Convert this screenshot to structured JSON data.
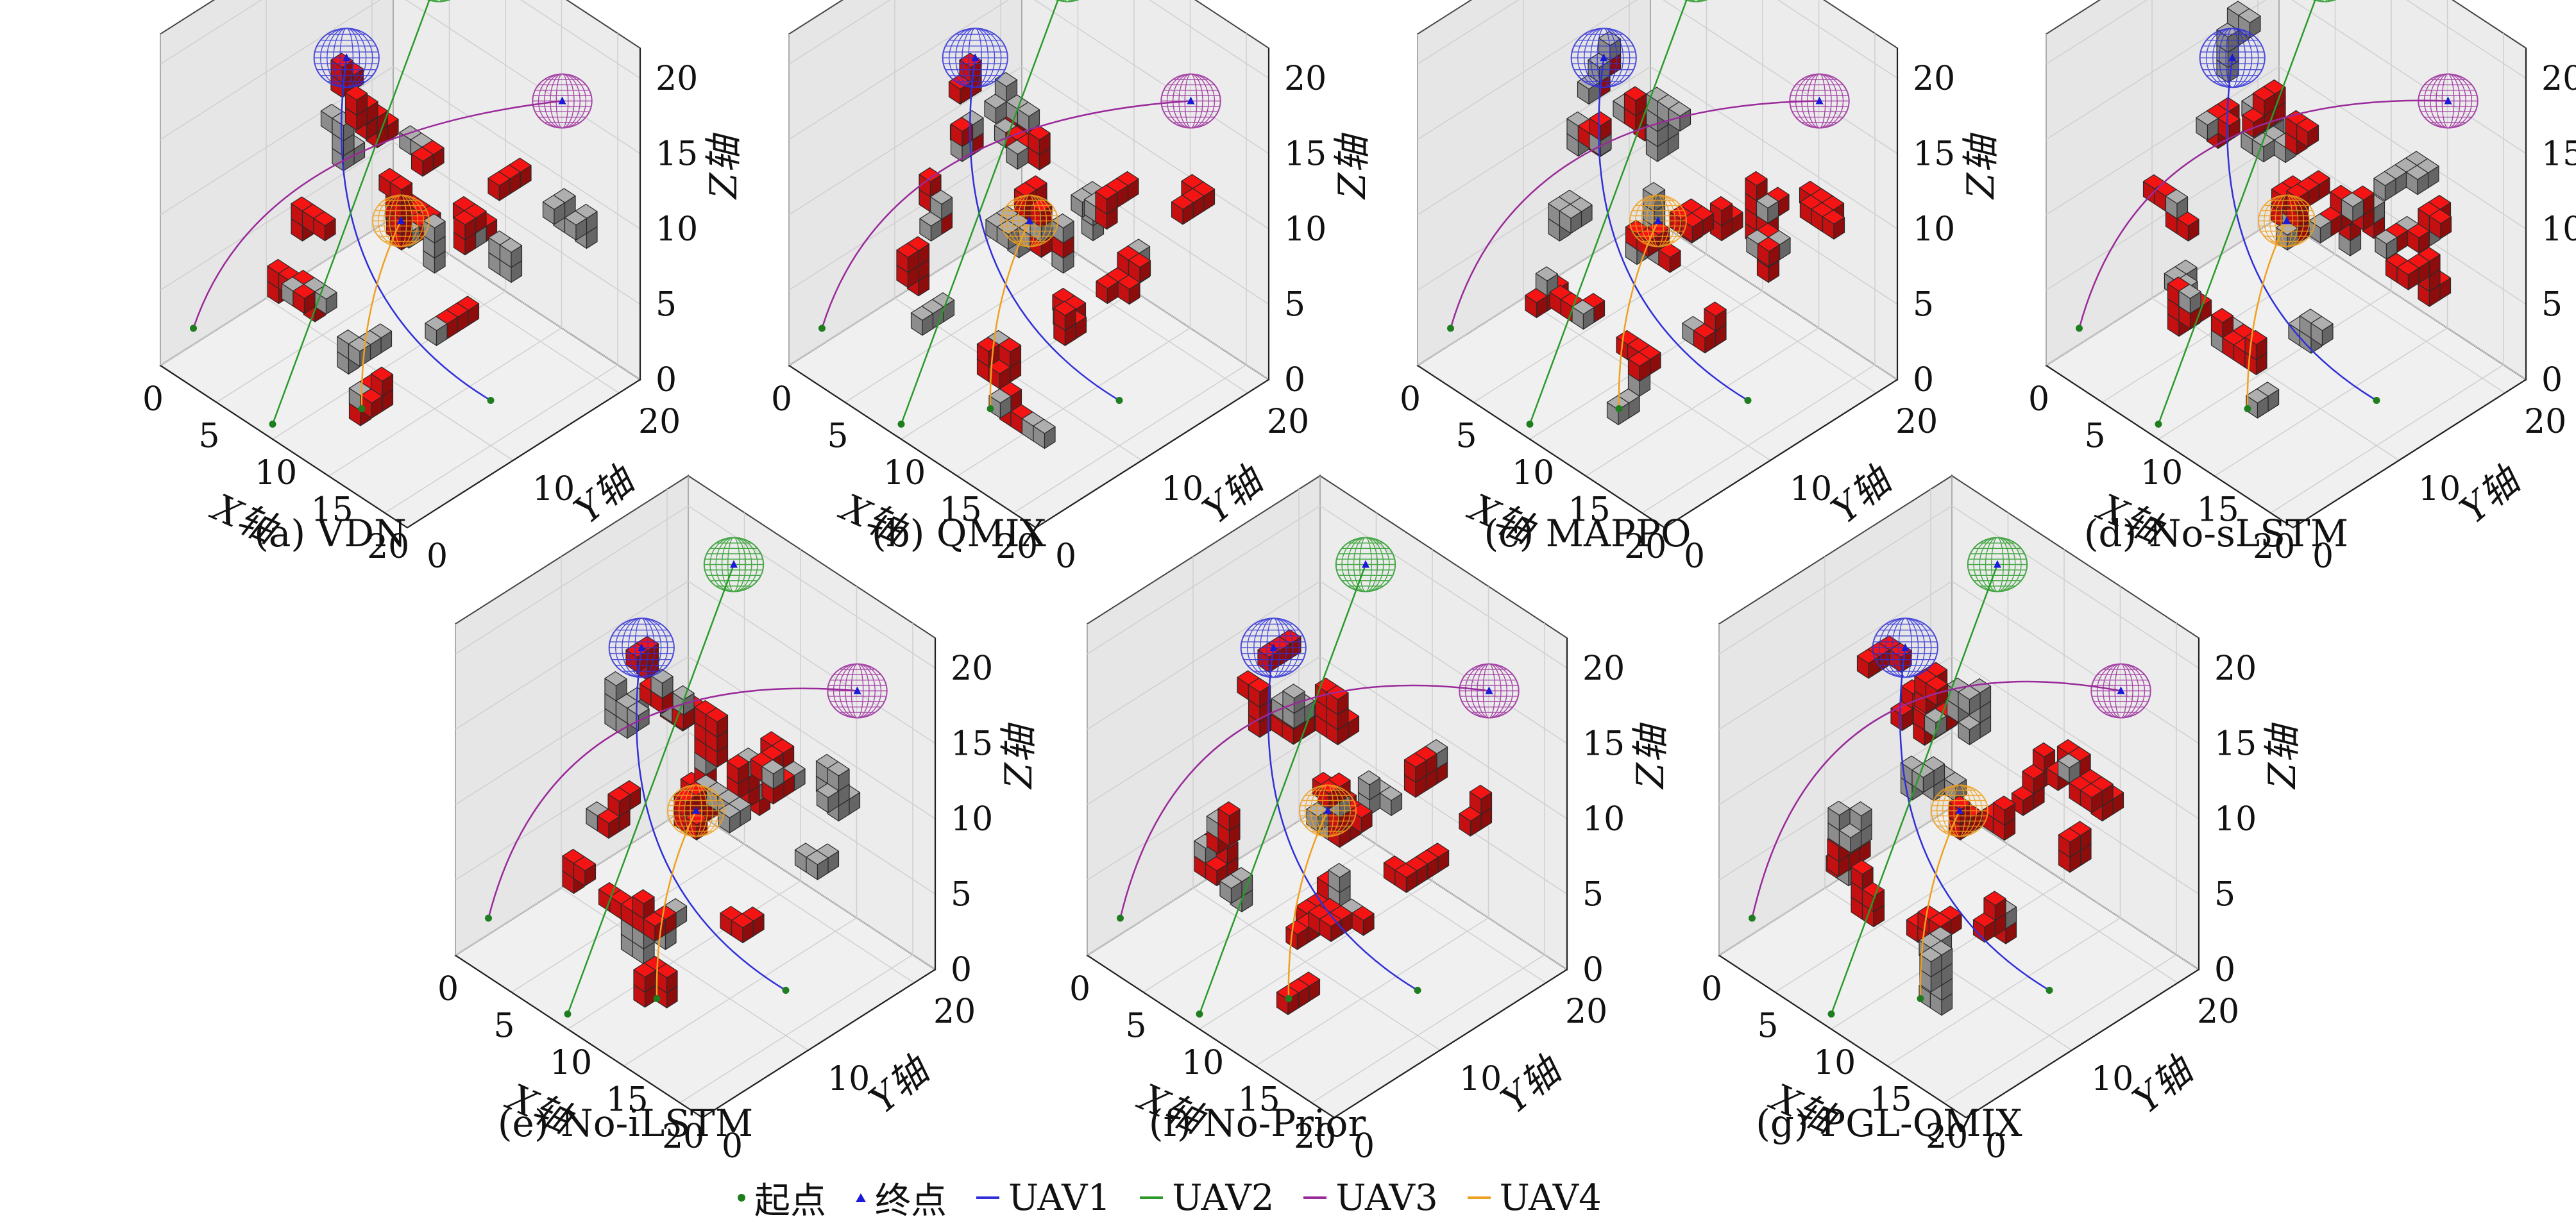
{
  "figure": {
    "legend": {
      "items": [
        {
          "label": "起点",
          "kind": "dot",
          "color": "#1e7d1e"
        },
        {
          "label": "终点",
          "kind": "triangle",
          "color": "#1a1ad8"
        },
        {
          "label": "UAV1",
          "kind": "line",
          "color": "#3030d8"
        },
        {
          "label": "UAV2",
          "kind": "line",
          "color": "#2a9a2a"
        },
        {
          "label": "UAV3",
          "kind": "line",
          "color": "#9a2a9a"
        },
        {
          "label": "UAV4",
          "kind": "line",
          "color": "#f0a020"
        }
      ]
    }
  },
  "chart_data": [
    {
      "type": "3d-path",
      "caption": "(a) VDN",
      "xlabel": "X轴",
      "ylabel": "Y轴",
      "zlabel": "Z轴",
      "x_ticks": [
        0,
        5,
        10,
        15,
        20
      ],
      "y_ticks": [
        0,
        10,
        20
      ],
      "z_ticks": [
        0,
        5,
        10,
        15,
        20
      ],
      "xlim": [
        0,
        22
      ],
      "ylim": [
        0,
        22
      ],
      "zlim": [
        0,
        22
      ],
      "series": [
        "UAV1",
        "UAV2",
        "UAV3",
        "UAV4"
      ],
      "colors": {
        "obstacle_red": "#c41010",
        "obstacle_gray": "#8c8c8c",
        "UAV1": "#3030d8",
        "UAV2": "#2a9a2a",
        "UAV3": "#9a2a9a",
        "UAV4": "#f0a020"
      }
    },
    {
      "type": "3d-path",
      "caption": "(b) QMIX",
      "xlabel": "X轴",
      "ylabel": "Y轴",
      "zlabel": "Z轴",
      "x_ticks": [
        0,
        5,
        10,
        15,
        20
      ],
      "y_ticks": [
        0,
        10,
        20
      ],
      "z_ticks": [
        0,
        5,
        10,
        15,
        20
      ],
      "xlim": [
        0,
        22
      ],
      "ylim": [
        0,
        22
      ],
      "zlim": [
        0,
        22
      ],
      "series": [
        "UAV1",
        "UAV2",
        "UAV3",
        "UAV4"
      ],
      "colors": {
        "obstacle_red": "#c41010",
        "obstacle_gray": "#8c8c8c",
        "UAV1": "#3030d8",
        "UAV2": "#2a9a2a",
        "UAV3": "#9a2a9a",
        "UAV4": "#f0a020"
      }
    },
    {
      "type": "3d-path",
      "caption": "(c) MAPPO",
      "xlabel": "X轴",
      "ylabel": "Y轴",
      "zlabel": "Z轴",
      "x_ticks": [
        0,
        5,
        10,
        15,
        20
      ],
      "y_ticks": [
        0,
        10,
        20
      ],
      "z_ticks": [
        0,
        5,
        10,
        15,
        20
      ],
      "xlim": [
        0,
        22
      ],
      "ylim": [
        0,
        22
      ],
      "zlim": [
        0,
        22
      ],
      "series": [
        "UAV1",
        "UAV2",
        "UAV3",
        "UAV4"
      ],
      "colors": {
        "obstacle_red": "#c41010",
        "obstacle_gray": "#8c8c8c",
        "UAV1": "#3030d8",
        "UAV2": "#2a9a2a",
        "UAV3": "#9a2a9a",
        "UAV4": "#f0a020"
      }
    },
    {
      "type": "3d-path",
      "caption": "(d) No-sLSTM",
      "xlabel": "X轴",
      "ylabel": "Y轴",
      "zlabel": "Z轴",
      "x_ticks": [
        0,
        5,
        10,
        15,
        20
      ],
      "y_ticks": [
        0,
        10,
        20
      ],
      "z_ticks": [
        0,
        5,
        10,
        15,
        20
      ],
      "xlim": [
        0,
        22
      ],
      "ylim": [
        0,
        22
      ],
      "zlim": [
        0,
        22
      ],
      "series": [
        "UAV1",
        "UAV2",
        "UAV3",
        "UAV4"
      ],
      "colors": {
        "obstacle_red": "#c41010",
        "obstacle_gray": "#8c8c8c",
        "UAV1": "#3030d8",
        "UAV2": "#2a9a2a",
        "UAV3": "#9a2a9a",
        "UAV4": "#f0a020"
      }
    },
    {
      "type": "3d-path",
      "caption": "(e) No-iLSTM",
      "xlabel": "X轴",
      "ylabel": "Y轴",
      "zlabel": "Z轴",
      "x_ticks": [
        0,
        5,
        10,
        15,
        20
      ],
      "y_ticks": [
        0,
        10,
        20
      ],
      "z_ticks": [
        0,
        5,
        10,
        15,
        20
      ],
      "xlim": [
        0,
        22
      ],
      "ylim": [
        0,
        22
      ],
      "zlim": [
        0,
        22
      ],
      "series": [
        "UAV1",
        "UAV2",
        "UAV3",
        "UAV4"
      ],
      "colors": {
        "obstacle_red": "#c41010",
        "obstacle_gray": "#8c8c8c",
        "UAV1": "#3030d8",
        "UAV2": "#2a9a2a",
        "UAV3": "#9a2a9a",
        "UAV4": "#f0a020"
      }
    },
    {
      "type": "3d-path",
      "caption": "(f) No-Prior",
      "xlabel": "X轴",
      "ylabel": "Y轴",
      "zlabel": "Z轴",
      "x_ticks": [
        0,
        5,
        10,
        15,
        20
      ],
      "y_ticks": [
        0,
        10,
        20
      ],
      "z_ticks": [
        0,
        5,
        10,
        15,
        20
      ],
      "xlim": [
        0,
        22
      ],
      "ylim": [
        0,
        22
      ],
      "zlim": [
        0,
        22
      ],
      "series": [
        "UAV1",
        "UAV2",
        "UAV3",
        "UAV4"
      ],
      "colors": {
        "obstacle_red": "#c41010",
        "obstacle_gray": "#8c8c8c",
        "UAV1": "#3030d8",
        "UAV2": "#2a9a2a",
        "UAV3": "#9a2a9a",
        "UAV4": "#f0a020"
      }
    },
    {
      "type": "3d-path",
      "caption": "(g) PGL-QMIX",
      "xlabel": "X轴",
      "ylabel": "Y轴",
      "zlabel": "Z轴",
      "x_ticks": [
        0,
        5,
        10,
        15,
        20
      ],
      "y_ticks": [
        0,
        10,
        20
      ],
      "z_ticks": [
        0,
        5,
        10,
        15,
        20
      ],
      "xlim": [
        0,
        22
      ],
      "ylim": [
        0,
        22
      ],
      "zlim": [
        0,
        22
      ],
      "series": [
        "UAV1",
        "UAV2",
        "UAV3",
        "UAV4"
      ],
      "colors": {
        "obstacle_red": "#c41010",
        "obstacle_gray": "#8c8c8c",
        "UAV1": "#3030d8",
        "UAV2": "#2a9a2a",
        "UAV3": "#9a2a9a",
        "UAV4": "#f0a020"
      }
    }
  ]
}
